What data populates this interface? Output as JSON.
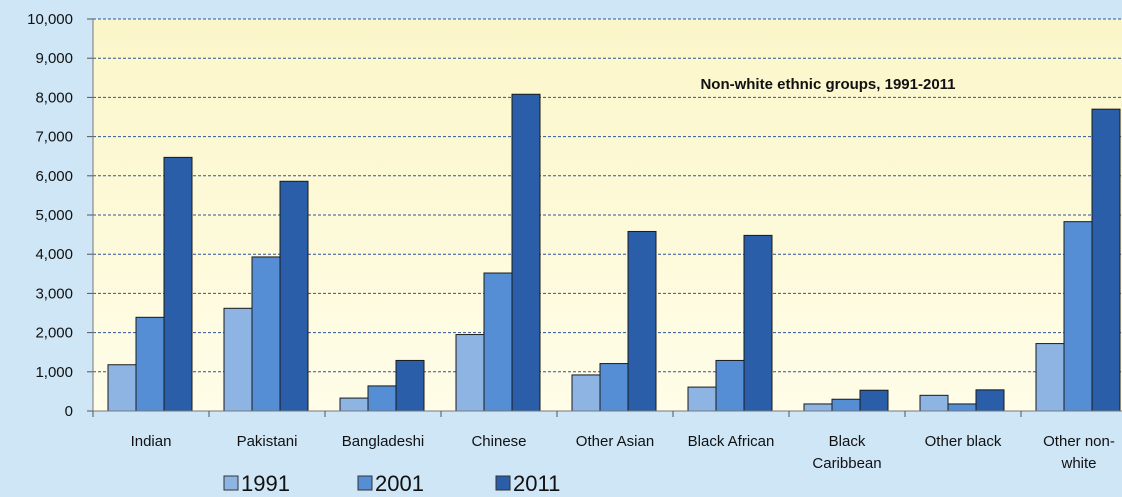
{
  "chart_data": {
    "type": "bar",
    "title": "Non-white ethnic groups, 1991-2011",
    "xlabel": "",
    "ylabel": "",
    "categories": [
      [
        "Indian"
      ],
      [
        "Pakistani"
      ],
      [
        "Bangladeshi"
      ],
      [
        "Chinese"
      ],
      [
        "Other Asian"
      ],
      [
        "Black African"
      ],
      [
        "Black",
        "Caribbean"
      ],
      [
        "Other black"
      ],
      [
        "Other non-",
        "white"
      ]
    ],
    "series": [
      {
        "name": "1991",
        "color": "#8eb4e3",
        "values": [
          1180,
          2620,
          330,
          1950,
          920,
          610,
          180,
          400,
          1720
        ]
      },
      {
        "name": "2001",
        "color": "#558ed5",
        "values": [
          2390,
          3930,
          640,
          3520,
          1210,
          1290,
          300,
          180,
          4830
        ]
      },
      {
        "name": "2011",
        "color": "#2a5ea8",
        "values": [
          6470,
          5860,
          1290,
          8080,
          4580,
          4480,
          530,
          540,
          7700
        ]
      }
    ],
    "ylim": [
      0,
      10000
    ],
    "yticks": [
      "0",
      "1,000",
      "2,000",
      "3,000",
      "4,000",
      "5,000",
      "6,000",
      "7,000",
      "8,000",
      "9,000",
      "10,000"
    ],
    "grid": true,
    "legend_position": "bottom-left",
    "colors": {
      "page_background": "#cfe6f7",
      "plot_background_top": "#fbf6c9",
      "plot_background_bottom": "#fffde8",
      "gridline": "#2f5597",
      "bar_outline": "#1a1a1a"
    }
  }
}
